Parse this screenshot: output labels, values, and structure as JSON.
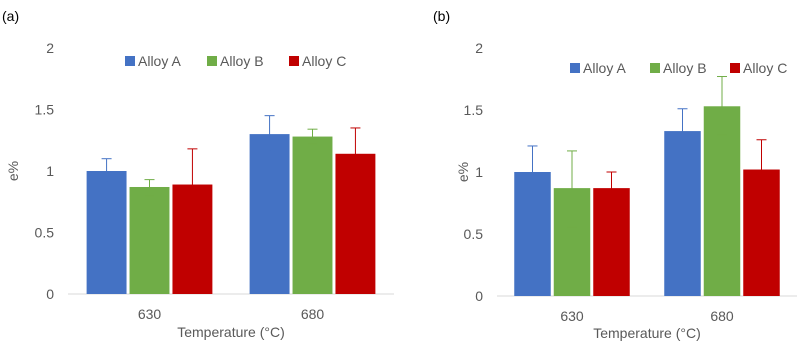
{
  "chart_data": [
    {
      "panel_label": "(a)",
      "type": "bar",
      "categories": [
        "630",
        "680"
      ],
      "series": [
        {
          "name": "Alloy A",
          "color": "#4472C4",
          "values": [
            1.0,
            1.3
          ],
          "err_high": [
            1.1,
            1.45
          ],
          "err_low": [
            0.91,
            1.16
          ]
        },
        {
          "name": "Alloy B",
          "color": "#70AD47",
          "values": [
            0.87,
            1.28
          ],
          "err_high": [
            0.93,
            1.34
          ],
          "err_low": [
            0.8,
            1.22
          ]
        },
        {
          "name": "Alloy C",
          "color": "#C00000",
          "values": [
            0.89,
            1.14
          ],
          "err_high": [
            1.18,
            1.35
          ],
          "err_low": [
            0.59,
            0.94
          ]
        }
      ],
      "xlabel": "Temperature (°C)",
      "ylabel": "e%",
      "ylim": [
        0,
        2
      ],
      "yticks": [
        "0",
        "0.5",
        "1",
        "1.5",
        "2"
      ],
      "grid": false,
      "legend": "top"
    },
    {
      "panel_label": "(b)",
      "type": "bar",
      "categories": [
        "630",
        "680"
      ],
      "series": [
        {
          "name": "Alloy A",
          "color": "#4472C4",
          "values": [
            1.0,
            1.33
          ],
          "err_high": [
            1.21,
            1.51
          ],
          "err_low": [
            0.79,
            1.16
          ]
        },
        {
          "name": "Alloy B",
          "color": "#70AD47",
          "values": [
            0.87,
            1.53
          ],
          "err_high": [
            1.17,
            1.77
          ],
          "err_low": [
            0.56,
            1.3
          ]
        },
        {
          "name": "Alloy C",
          "color": "#C00000",
          "values": [
            0.87,
            1.02
          ],
          "err_high": [
            1.0,
            1.26
          ],
          "err_low": [
            0.74,
            0.78
          ]
        }
      ],
      "xlabel": "Temperature (°C)",
      "ylabel": "e%",
      "ylim": [
        0,
        2
      ],
      "yticks": [
        "0",
        "0.5",
        "1",
        "1.5",
        "2"
      ],
      "grid": false,
      "legend": "top"
    }
  ]
}
